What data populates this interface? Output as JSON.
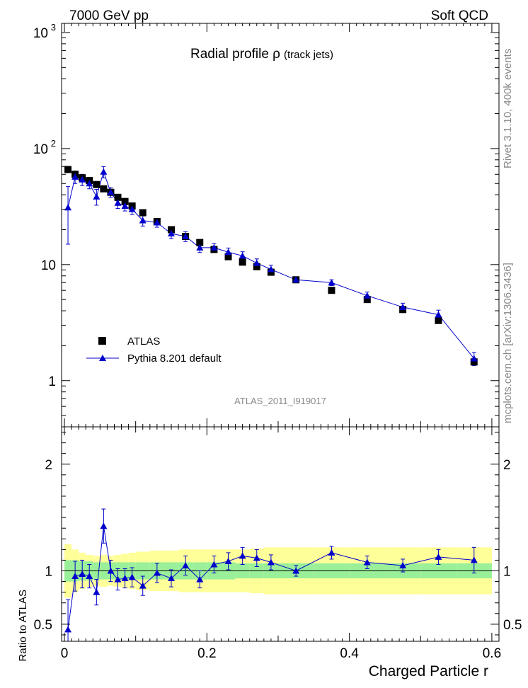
{
  "header": {
    "left": "7000 GeV pp",
    "right": "Soft QCD"
  },
  "side": {
    "rivet": "Rivet 3.1.10,  400k events",
    "mcplots": "mcplots.cern.ch [arXiv:1306.3436]"
  },
  "watermark": "ATLAS_2011_I919017",
  "colors": {
    "data": "#000000",
    "mc": "#0000cc",
    "band_inner": "#99f099",
    "band_outer": "#ffff99"
  },
  "chart_data": [
    {
      "type": "scatter",
      "title_main": "Radial profile  ρ",
      "title_suffix": "(track jets)",
      "scale": "log",
      "xlim": [
        -0.004,
        0.61
      ],
      "ylim": [
        0.4,
        1200
      ],
      "y_ticks": [
        {
          "value": 1,
          "label": "1"
        },
        {
          "value": 10,
          "label": "10"
        },
        {
          "value": 100,
          "label": "10",
          "exp": "2"
        },
        {
          "value": 1000,
          "label": "10",
          "exp": "3"
        }
      ],
      "legend": [
        {
          "label": "ATLAS",
          "marker": "square"
        },
        {
          "label": "Pythia 8.201 default",
          "marker": "triangle-line"
        }
      ],
      "x": [
        0.005,
        0.015,
        0.025,
        0.035,
        0.045,
        0.055,
        0.065,
        0.075,
        0.085,
        0.095,
        0.11,
        0.13,
        0.15,
        0.17,
        0.19,
        0.21,
        0.23,
        0.25,
        0.27,
        0.29,
        0.325,
        0.375,
        0.425,
        0.475,
        0.525,
        0.575
      ],
      "series": [
        {
          "name": "ATLAS",
          "values": [
            66,
            60,
            56,
            53,
            49,
            45,
            42,
            38,
            35,
            32,
            28,
            23.5,
            20,
            17.5,
            15.5,
            13.5,
            11.7,
            10.5,
            9.6,
            8.6,
            7.4,
            6.0,
            5.0,
            4.1,
            3.3,
            1.45
          ]
        },
        {
          "name": "Pythia 8.201 default",
          "values": [
            31,
            57,
            54,
            50,
            38.5,
            63,
            42,
            34,
            32,
            30,
            24,
            23,
            18.5,
            17.5,
            14,
            14,
            12.8,
            11.9,
            10.3,
            9.1,
            7.4,
            7.0,
            5.4,
            4.3,
            3.7,
            1.55
          ],
          "err": [
            16,
            7,
            6,
            5,
            6,
            7,
            4,
            3.5,
            3,
            3,
            2.5,
            2,
            1.7,
            1.7,
            1.3,
            1.2,
            1.1,
            1,
            0.9,
            0.8,
            0.4,
            0.4,
            0.4,
            0.35,
            0.35,
            0.2
          ]
        }
      ]
    },
    {
      "type": "line",
      "ylabel": "Ratio to ATLAS",
      "xlabel": "Charged Particle r",
      "xlim": [
        -0.004,
        0.61
      ],
      "ylim": [
        0.34,
        2.35
      ],
      "x_ticks": [
        {
          "value": 0,
          "label": "0"
        },
        {
          "value": 0.2,
          "label": "0.2"
        },
        {
          "value": 0.4,
          "label": "0.4"
        },
        {
          "value": 0.6,
          "label": "0.6"
        }
      ],
      "y_ticks": [
        {
          "value": 0.5,
          "label": "0.5"
        },
        {
          "value": 1,
          "label": "1"
        },
        {
          "value": 2,
          "label": "2"
        }
      ],
      "x": [
        0.005,
        0.015,
        0.025,
        0.035,
        0.045,
        0.055,
        0.065,
        0.075,
        0.085,
        0.095,
        0.11,
        0.13,
        0.15,
        0.17,
        0.19,
        0.21,
        0.23,
        0.25,
        0.27,
        0.29,
        0.325,
        0.375,
        0.425,
        0.475,
        0.525,
        0.575
      ],
      "bin_edges": [
        0,
        0.01,
        0.02,
        0.03,
        0.04,
        0.05,
        0.06,
        0.07,
        0.08,
        0.09,
        0.1,
        0.12,
        0.14,
        0.16,
        0.18,
        0.2,
        0.22,
        0.24,
        0.26,
        0.28,
        0.3,
        0.35,
        0.4,
        0.45,
        0.5,
        0.55,
        0.6
      ],
      "band_inner": [
        0.1,
        0.1,
        0.09,
        0.09,
        0.08,
        0.08,
        0.08,
        0.08,
        0.08,
        0.08,
        0.08,
        0.08,
        0.08,
        0.08,
        0.08,
        0.08,
        0.08,
        0.07,
        0.07,
        0.07,
        0.07,
        0.07,
        0.07,
        0.07,
        0.07,
        0.07
      ],
      "band_outer": [
        0.25,
        0.2,
        0.17,
        0.15,
        0.14,
        0.15,
        0.14,
        0.15,
        0.16,
        0.17,
        0.18,
        0.19,
        0.19,
        0.2,
        0.2,
        0.2,
        0.2,
        0.2,
        0.21,
        0.22,
        0.22,
        0.22,
        0.22,
        0.22,
        0.22,
        0.22
      ],
      "series": [
        {
          "name": "Pythia 8.201 default",
          "values": [
            0.45,
            0.95,
            0.97,
            0.95,
            0.8,
            1.42,
            1.0,
            0.92,
            0.93,
            0.94,
            0.86,
            0.98,
            0.93,
            1.05,
            0.92,
            1.06,
            1.09,
            1.14,
            1.12,
            1.08,
            1.0,
            1.17,
            1.08,
            1.05,
            1.13,
            1.1
          ],
          "err": [
            0.28,
            0.14,
            0.13,
            0.11,
            0.12,
            0.16,
            0.1,
            0.1,
            0.09,
            0.09,
            0.09,
            0.09,
            0.08,
            0.09,
            0.08,
            0.08,
            0.08,
            0.08,
            0.08,
            0.07,
            0.05,
            0.06,
            0.06,
            0.06,
            0.07,
            0.12
          ]
        }
      ]
    }
  ]
}
